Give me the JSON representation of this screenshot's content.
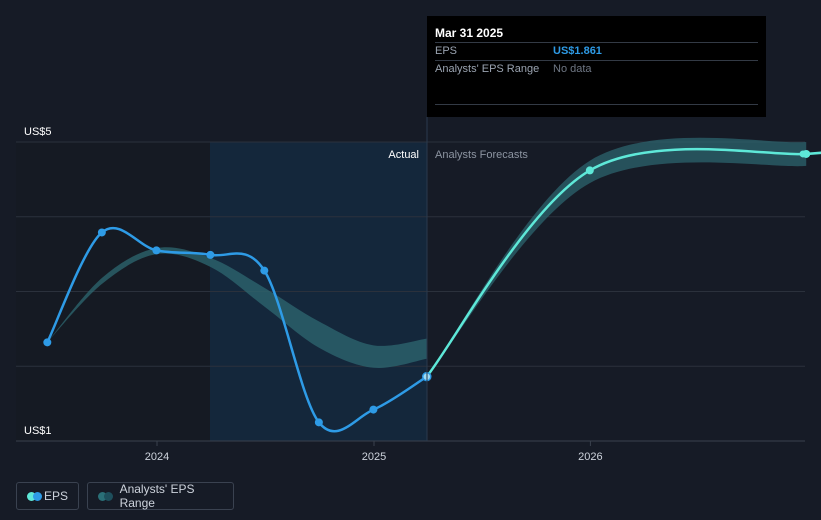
{
  "chart_data": {
    "type": "line",
    "y_axis_labels": [
      "US$5",
      "US$1"
    ],
    "ylim": [
      1,
      5
    ],
    "x_tick_labels": [
      "2024",
      "2025",
      "2026"
    ],
    "region_labels": {
      "actual": "Actual",
      "forecast": "Analysts Forecasts"
    },
    "series": [
      {
        "name": "EPS",
        "points": [
          {
            "x": "2023-06-30",
            "y": 2.32
          },
          {
            "x": "2023-09-30",
            "y": 3.79
          },
          {
            "x": "2023-12-31",
            "y": 3.55
          },
          {
            "x": "2024-03-31",
            "y": 3.49
          },
          {
            "x": "2024-06-30",
            "y": 3.28
          },
          {
            "x": "2024-09-30",
            "y": 1.25
          },
          {
            "x": "2024-12-31",
            "y": 1.42
          },
          {
            "x": "2025-03-31",
            "y": 1.861
          }
        ]
      },
      {
        "name": "EPS forecast",
        "points": [
          {
            "x": "2025-03-31",
            "y": 1.861
          },
          {
            "x": "2025-12-31",
            "y": 4.62
          },
          {
            "x": "2026-12-31",
            "y": 4.84
          }
        ]
      },
      {
        "name": "Analysts' EPS Range (past)",
        "points": [
          {
            "x": "2023-06-30",
            "y_low": 2.32,
            "y_high": 2.32
          },
          {
            "x": "2023-09-30",
            "y_low": 3.1,
            "y_high": 3.18
          },
          {
            "x": "2023-12-31",
            "y_low": 3.5,
            "y_high": 3.58
          },
          {
            "x": "2024-03-31",
            "y_low": 3.33,
            "y_high": 3.45
          },
          {
            "x": "2024-06-30",
            "y_low": 2.8,
            "y_high": 3.05
          },
          {
            "x": "2024-09-30",
            "y_low": 2.25,
            "y_high": 2.6
          },
          {
            "x": "2024-12-31",
            "y_low": 1.98,
            "y_high": 2.28
          },
          {
            "x": "2025-03-31",
            "y_low": 2.1,
            "y_high": 2.37
          }
        ]
      },
      {
        "name": "Analysts' EPS Range (forecast)",
        "points": [
          {
            "x": "2025-03-31",
            "y_low": 1.861,
            "y_high": 1.861
          },
          {
            "x": "2025-12-31",
            "y_low": 4.45,
            "y_high": 4.75
          },
          {
            "x": "2026-12-31",
            "y_low": 4.68,
            "y_high": 5.0
          }
        ]
      }
    ],
    "tooltip": {
      "date": "Mar 31 2025",
      "rows": [
        {
          "label": "EPS",
          "value": "US$1.861"
        },
        {
          "label": "Analysts' EPS Range",
          "value": "No data"
        }
      ]
    },
    "legend": [
      {
        "label": "EPS",
        "color": "#2e9be6",
        "color2": "#5ee8d8"
      },
      {
        "label": "Analysts' EPS Range",
        "color": "#2a6f77",
        "color2": "#1e4f5c"
      }
    ],
    "colors": {
      "background": "#161b26",
      "actual_region": "#14273b",
      "eps_line": "#2e9be6",
      "forecast_line": "#5ee8d8",
      "range_band": "#2d6872"
    }
  }
}
